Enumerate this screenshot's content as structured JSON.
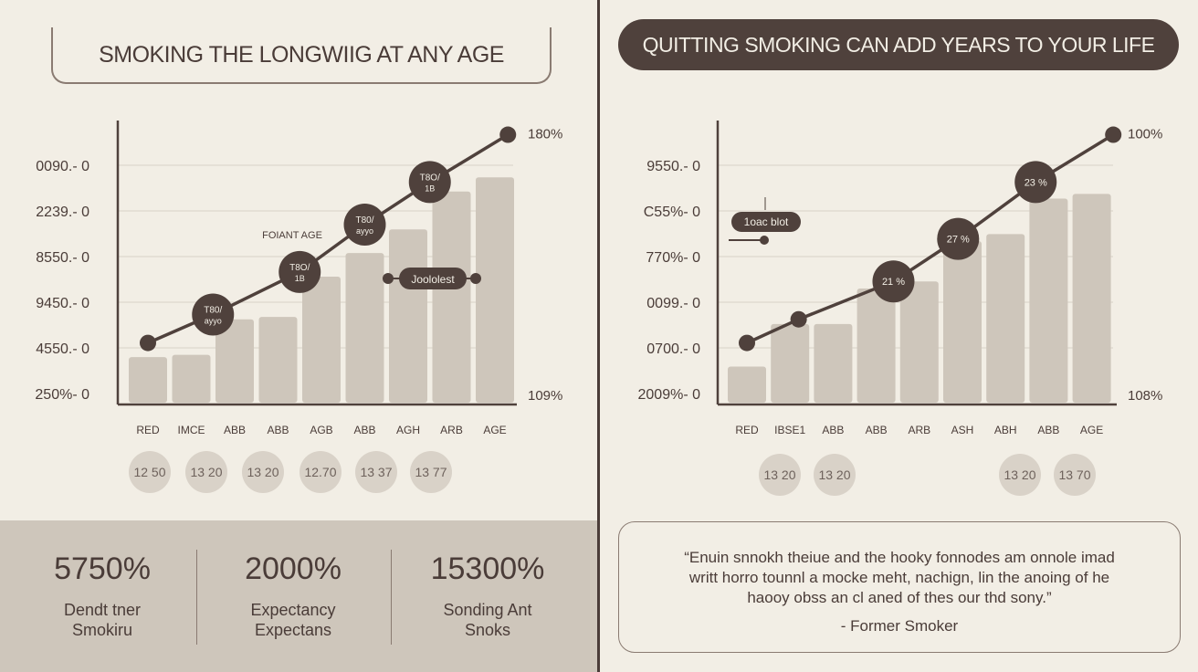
{
  "colors": {
    "background": "#f2eee5",
    "dark": "#4f413c",
    "bar": "#cec6bb",
    "circle": "#d9d2c8"
  },
  "left": {
    "title": "SMOKING THE LONGWIIG AT ANY AGE",
    "circles": [
      "12 50",
      "13 20",
      "13 20",
      "12.70",
      "13 37",
      "13 77"
    ],
    "stats": [
      {
        "value": "5750%",
        "label1": "Dendt tner",
        "label2": "Smokiru"
      },
      {
        "value": "2000%",
        "label1": "Expectancy",
        "label2": "Expectans"
      },
      {
        "value": "15300%",
        "label1": "Sonding Ant",
        "label2": "Snoks"
      }
    ]
  },
  "right": {
    "title": "QUITTING SMOKING CAN ADD YEARS TO YOUR LIFE",
    "circles": [
      "13 20",
      "13 20",
      "13 20",
      "13 70"
    ],
    "quote": {
      "line1": "“Enuin snnokh theiue and the hooky fonnodes am onnole imad",
      "line2": "writt horro tounnl a mocke meht, nachign, lin the anoing of he",
      "line3": "haooy obss an cl aned of thes our thd sony.”",
      "author": "- Former Smoker"
    }
  },
  "chart_data": [
    {
      "type": "bar",
      "categories": [
        "RED",
        "IMCE",
        "ABB",
        "ABB",
        "AGB",
        "ABB",
        "AGH",
        "ARB",
        "AGE"
      ],
      "values": [
        10,
        10.5,
        18,
        18.5,
        27,
        32,
        37,
        45,
        48
      ],
      "ylim": [
        0,
        60
      ],
      "yticks": [
        "250%- 0",
        "4550.- 0",
        "9450.- 0",
        "8550.- 0",
        "2239.- 0",
        "0090.- 0"
      ],
      "right_labels": {
        "top": "180%",
        "bottom": "109%"
      },
      "series": [
        {
          "type": "line",
          "x": [
            0,
            1.5,
            3.5,
            5,
            6.5,
            8.3
          ],
          "values": [
            13,
            19,
            28,
            38,
            47,
            57
          ]
        }
      ],
      "annotations": [
        {
          "text": "T80/ ayyo",
          "at": 1
        },
        {
          "text": "T8O/ 1B",
          "at": 2
        },
        {
          "text": "T80/ ayyo",
          "at": 3
        },
        {
          "text": "T8O/ 1B",
          "at": 4
        },
        {
          "text": "FOIANT AGE"
        },
        {
          "text": "Joololest"
        }
      ]
    },
    {
      "type": "bar",
      "categories": [
        "RED",
        "IBSE1",
        "ABB",
        "ABB",
        "ARB",
        "ASH",
        "ABH",
        "ABB",
        "AGE"
      ],
      "values": [
        8,
        17,
        17,
        24.5,
        26,
        34.5,
        36,
        43.5,
        44.5
      ],
      "ylim": [
        0,
        60
      ],
      "yticks": [
        "2009%- 0",
        "0700.- 0",
        "0099.- 0",
        "770%- 0",
        "C55%- 0",
        "9550.- 0"
      ],
      "right_labels": {
        "top": "100%",
        "bottom": "108%"
      },
      "series": [
        {
          "type": "line",
          "x": [
            0,
            1.2,
            3.4,
            4.9,
            6.7,
            8.5
          ],
          "values": [
            13,
            18,
            26,
            35,
            47,
            57
          ]
        }
      ],
      "annotations": [
        {
          "text": "21 %",
          "at": 2
        },
        {
          "text": "27 %",
          "at": 3
        },
        {
          "text": "23 %",
          "at": 4
        },
        {
          "text": "1oac blot"
        }
      ]
    }
  ]
}
